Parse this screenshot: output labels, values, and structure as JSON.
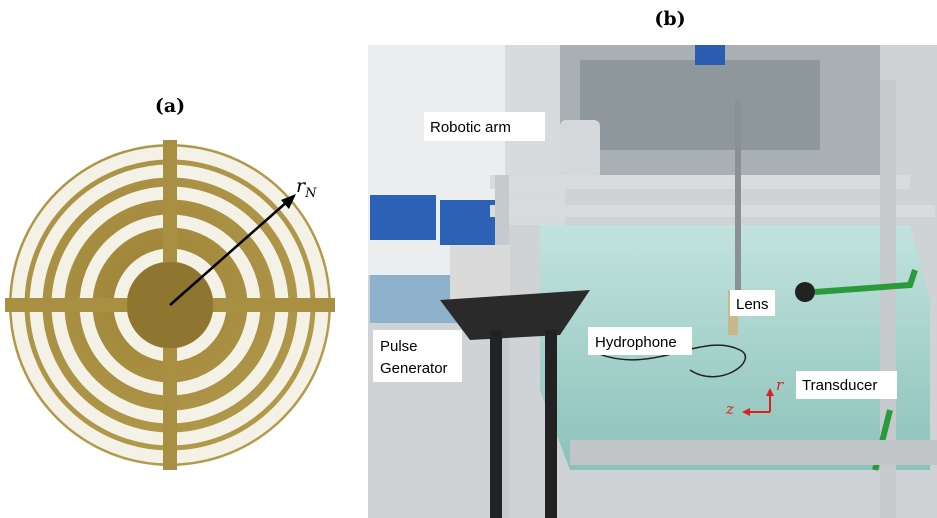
{
  "panel_a": {
    "label": "(a)",
    "symbol": "r",
    "subscript": "N"
  },
  "panel_b": {
    "label": "(b)",
    "callouts": {
      "robotic_arm": "Robotic arm",
      "pulse_1": "Pulse",
      "pulse_2": "Generator",
      "hydrophone": "Hydrophone",
      "lens": "Lens",
      "transducer": "Transducer"
    },
    "axes": {
      "z": "z",
      "r": "r"
    }
  }
}
